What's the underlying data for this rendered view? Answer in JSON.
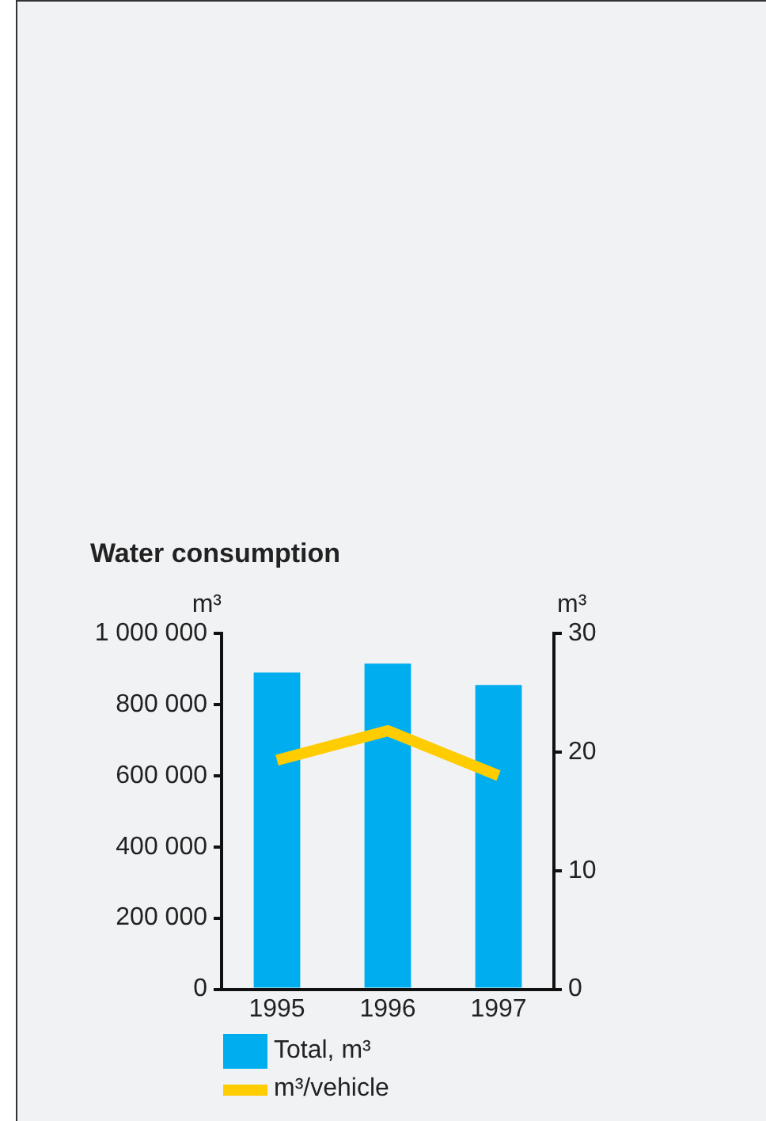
{
  "chart_data": {
    "type": "bar",
    "title": "Water consumption",
    "ylabel": "m³",
    "y2label": "m³",
    "categories": [
      "1995",
      "1996",
      "1997"
    ],
    "series": [
      {
        "name": "Total, m³",
        "color": "#00aeef",
        "values": [
          890000,
          915000,
          855000
        ]
      },
      {
        "name": "m³/vehicle",
        "type": "line",
        "axis": "y2",
        "color": "#ffcc00",
        "values": [
          19.3,
          21.8,
          18.0
        ]
      }
    ],
    "ylim": [
      0,
      1000000
    ],
    "yticks": [
      0,
      {
        "value": 200000,
        "label": "200 000"
      },
      {
        "value": 400000,
        "label": "400 000"
      },
      {
        "value": 600000,
        "label": "600 000"
      },
      {
        "value": 800000,
        "label": "800 000"
      },
      {
        "value": 1000000,
        "label": "1 000 000"
      }
    ],
    "y2lim": [
      0,
      30
    ],
    "y2ticks": [
      0,
      10,
      20,
      30
    ],
    "grid": false,
    "legend": "bottom",
    "marker": "none",
    "line_style": "solid"
  }
}
